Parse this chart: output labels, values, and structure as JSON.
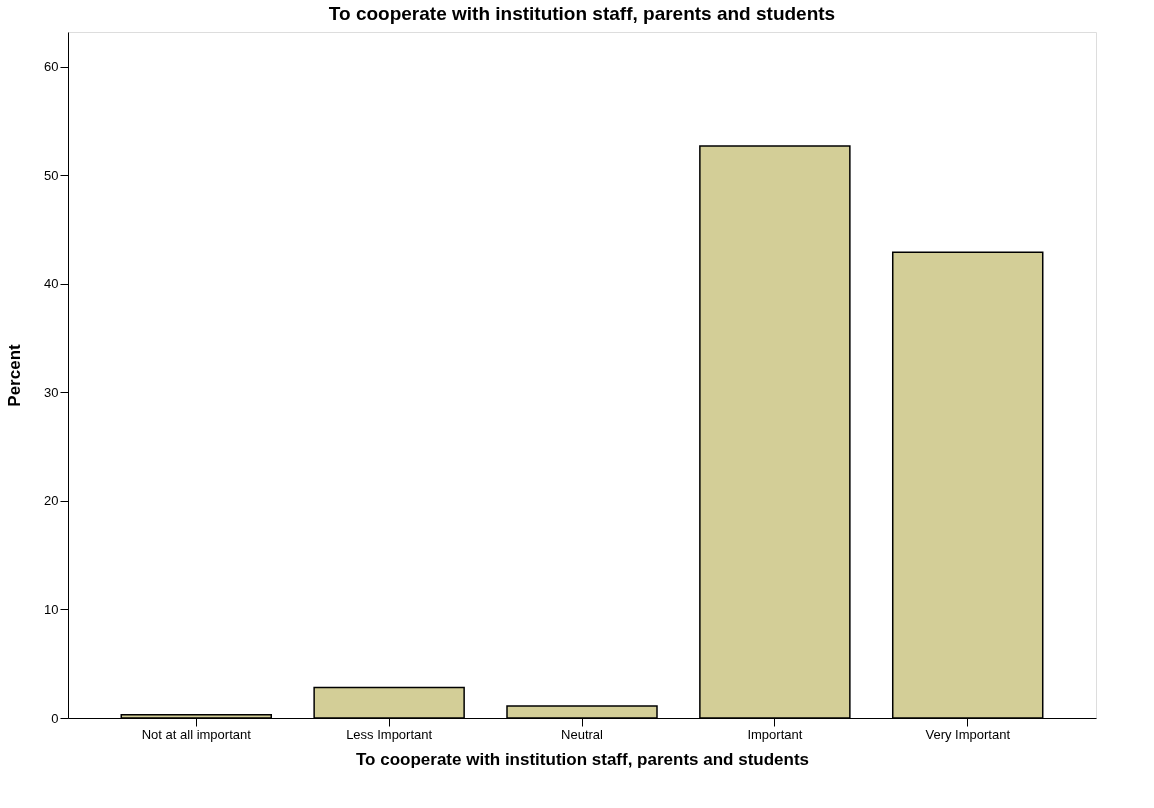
{
  "chart_data": {
    "type": "bar",
    "title": "To cooperate with institution staff, parents and students",
    "xlabel": "To cooperate with institution staff, parents and students",
    "ylabel": "Percent",
    "categories": [
      "Not at all important",
      "Less Important",
      "Neutral",
      "Important",
      "Very Important"
    ],
    "values": [
      0.3,
      2.8,
      1.1,
      52.7,
      42.9
    ],
    "color": "#d3ce97",
    "ylim": [
      0,
      63.2
    ],
    "yticks": [
      0,
      10,
      20,
      30,
      40,
      50,
      60
    ],
    "grid": false
  }
}
